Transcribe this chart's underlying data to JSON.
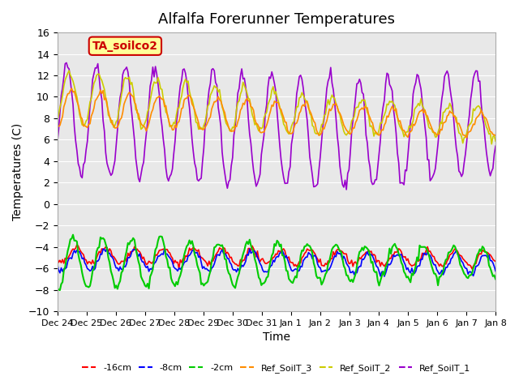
{
  "title": "Alfalfa Forerunner Temperatures",
  "xlabel": "Time",
  "ylabel": "Temperatures (C)",
  "ylim": [
    -10,
    16
  ],
  "yticks": [
    -10,
    -8,
    -6,
    -4,
    -2,
    0,
    2,
    4,
    6,
    8,
    10,
    12,
    14,
    16
  ],
  "annotation_text": "TA_soilco2",
  "annotation_box_color": "#FFFF99",
  "annotation_border_color": "#CC0000",
  "plot_bg_color": "#E8E8E8",
  "series": {
    "-16cm": {
      "color": "#FF0000"
    },
    "-8cm": {
      "color": "#0000FF"
    },
    "-2cm": {
      "color": "#00CC00"
    },
    "Ref_SoilT_3": {
      "color": "#FF8C00"
    },
    "Ref_SoilT_2": {
      "color": "#CCCC00"
    },
    "Ref_SoilT_1": {
      "color": "#9900CC"
    }
  },
  "x_tick_labels": [
    "Dec 24",
    "Dec 25",
    "Dec 26",
    "Dec 27",
    "Dec 28",
    "Dec 29",
    "Dec 30",
    "Dec 31",
    "Jan 1",
    "Jan 2",
    "Jan 3",
    "Jan 4",
    "Jan 5",
    "Jan 6",
    "Jan 7",
    "Jan 8"
  ],
  "n_points": 336,
  "n_days": 15
}
